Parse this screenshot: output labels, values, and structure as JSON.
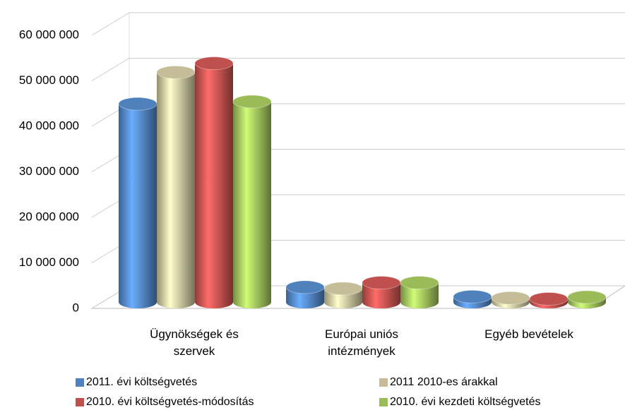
{
  "chart_data": {
    "type": "bar3d",
    "categories": [
      "Ügynökségek és szervek",
      "Európai uniós intézmények",
      "Egyéb bevételek"
    ],
    "series": [
      {
        "name": "2011. évi költségvetés",
        "color": "#4f81bd",
        "values": [
          44000000,
          3300000,
          1200000
        ]
      },
      {
        "name": "2011 2010-es árakkal",
        "color": "#c4bd97",
        "values": [
          51000000,
          3000000,
          900000
        ]
      },
      {
        "name": "2010. évi költségvetés-módosítás",
        "color": "#c0504d",
        "values": [
          53000000,
          4300000,
          700000
        ]
      },
      {
        "name": "2010. évi kezdeti költségvetés",
        "color": "#9bbb59",
        "values": [
          44500000,
          4300000,
          1100000
        ]
      }
    ],
    "ylim": [
      0,
      60000000
    ],
    "yticks": [
      0,
      {
        "value": 10000000,
        "label": "10 000 000"
      },
      {
        "value": 20000000,
        "label": "20 000 000"
      },
      {
        "value": 30000000,
        "label": "30 000 000"
      },
      {
        "value": 40000000,
        "label": "40 000 000"
      },
      {
        "value": 50000000,
        "label": "50 000 000"
      },
      {
        "value": 60000000,
        "label": "60 000 000"
      }
    ],
    "grid": true
  }
}
